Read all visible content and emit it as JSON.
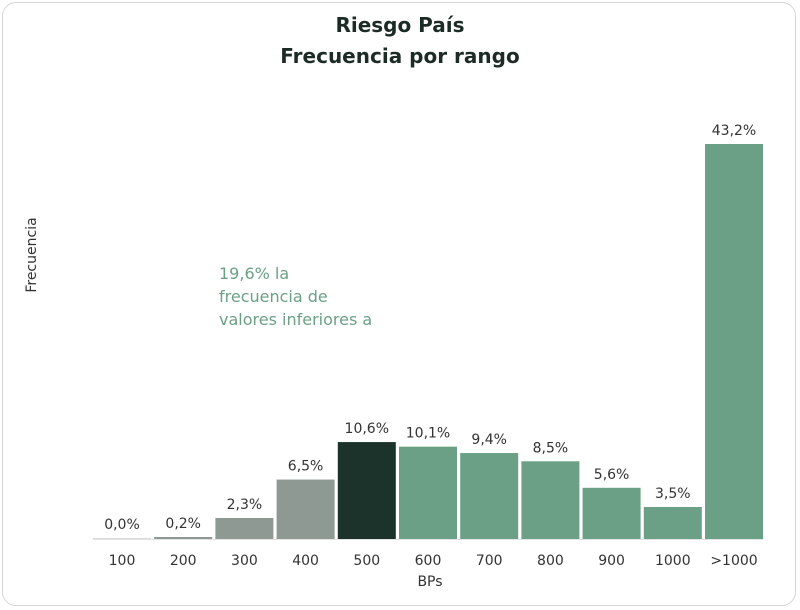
{
  "chart_data": {
    "type": "bar",
    "title": "Riesgo País",
    "subtitle": "Frecuencia por rango",
    "xlabel": "BPs",
    "ylabel": "Frecuencia",
    "categories": [
      "100",
      "200",
      "300",
      "400",
      "500",
      "600",
      "700",
      "800",
      "900",
      "1000",
      ">1000"
    ],
    "values": [
      0.0,
      0.2,
      2.3,
      6.5,
      10.6,
      10.1,
      9.4,
      8.5,
      5.6,
      3.5,
      43.2
    ],
    "value_labels": [
      "0,0%",
      "0,2%",
      "2,3%",
      "6,5%",
      "10,6%",
      "10,1%",
      "9,4%",
      "8,5%",
      "5,6%",
      "3,5%",
      "43,2%"
    ],
    "colors": [
      "#8e9993",
      "#8e9993",
      "#8e9993",
      "#8e9993",
      "#1b332b",
      "#6ba086",
      "#6ba086",
      "#6ba086",
      "#6ba086",
      "#6ba086",
      "#6ba086"
    ],
    "annotation": {
      "lines": [
        "19,6% la",
        "frecuencia de",
        "valores inferiores a"
      ],
      "color": "#6ba086"
    },
    "grid": false,
    "legend": "none"
  }
}
